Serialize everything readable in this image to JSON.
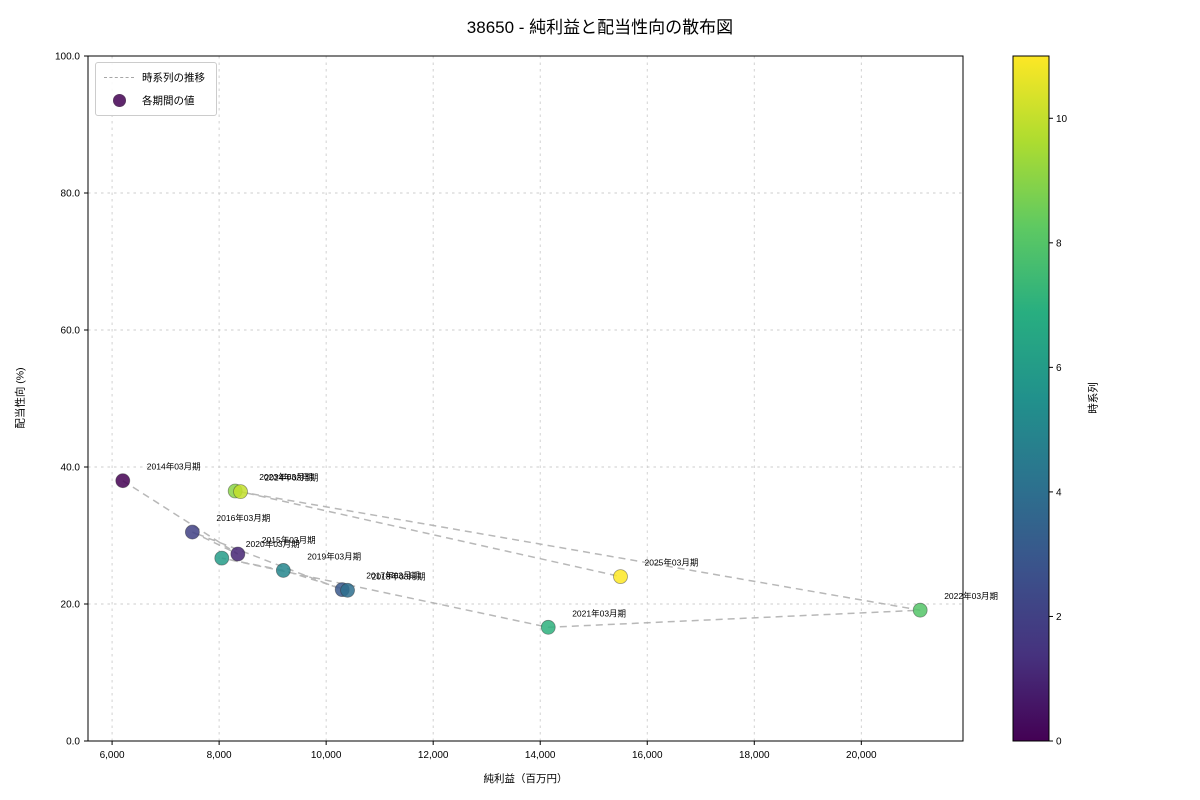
{
  "chart_data": {
    "type": "scatter",
    "title": "38650 - 純利益と配当性向の散布図",
    "xlabel": "純利益（百万円）",
    "ylabel": "配当性向 (%)",
    "xlim": [
      5550,
      21900
    ],
    "ylim": [
      0,
      100
    ],
    "x_ticks": [
      6000,
      8000,
      10000,
      12000,
      14000,
      16000,
      18000,
      20000
    ],
    "x_tick_labels": [
      "6,000",
      "8,000",
      "10,000",
      "12,000",
      "14,000",
      "16,000",
      "18,000",
      "20,000"
    ],
    "y_ticks": [
      0,
      20,
      40,
      60,
      80,
      100
    ],
    "y_tick_labels": [
      "0.0",
      "20.0",
      "40.0",
      "60.0",
      "80.0",
      "100.0"
    ],
    "grid": true,
    "legend_position": "upper-left",
    "legend_labels": [
      "時系列の推移",
      "各期間の値"
    ],
    "colorbar": {
      "label": "時系列",
      "min": 0,
      "max": 11,
      "ticks": [
        0,
        2,
        4,
        6,
        8,
        10
      ],
      "tick_labels": [
        "0",
        "2",
        "4",
        "6",
        "8",
        "10"
      ]
    },
    "points": [
      {
        "label": "2014年03月期",
        "x": 6200,
        "y": 38.0,
        "t": 0
      },
      {
        "label": "2015年03月期",
        "x": 8350,
        "y": 27.3,
        "t": 1
      },
      {
        "label": "2016年03月期",
        "x": 7500,
        "y": 30.5,
        "t": 2
      },
      {
        "label": "2017年03月期",
        "x": 10300,
        "y": 22.1,
        "t": 3
      },
      {
        "label": "2018年03月期",
        "x": 10400,
        "y": 22.0,
        "t": 4
      },
      {
        "label": "2019年03月期",
        "x": 9200,
        "y": 24.9,
        "t": 5
      },
      {
        "label": "2020年03月期",
        "x": 8050,
        "y": 26.7,
        "t": 6
      },
      {
        "label": "2021年03月期",
        "x": 14150,
        "y": 16.6,
        "t": 7
      },
      {
        "label": "2022年03月期",
        "x": 21100,
        "y": 19.1,
        "t": 8
      },
      {
        "label": "2023年03月期",
        "x": 8300,
        "y": 36.5,
        "t": 9
      },
      {
        "label": "2024年03月期",
        "x": 8400,
        "y": 36.4,
        "t": 10
      },
      {
        "label": "2025年03月期",
        "x": 15500,
        "y": 24.0,
        "t": 11
      }
    ]
  },
  "colors": {
    "trend_line": "#b0b0b0",
    "grid": "#cccccc",
    "axis": "#000000",
    "annotation": "#1c1c1c",
    "legend_border": "#cccccc",
    "viridis_stops": [
      "#440154",
      "#46327e",
      "#3b528b",
      "#2c728e",
      "#21918c",
      "#28ae80",
      "#5ec962",
      "#addc30",
      "#fde725"
    ]
  }
}
